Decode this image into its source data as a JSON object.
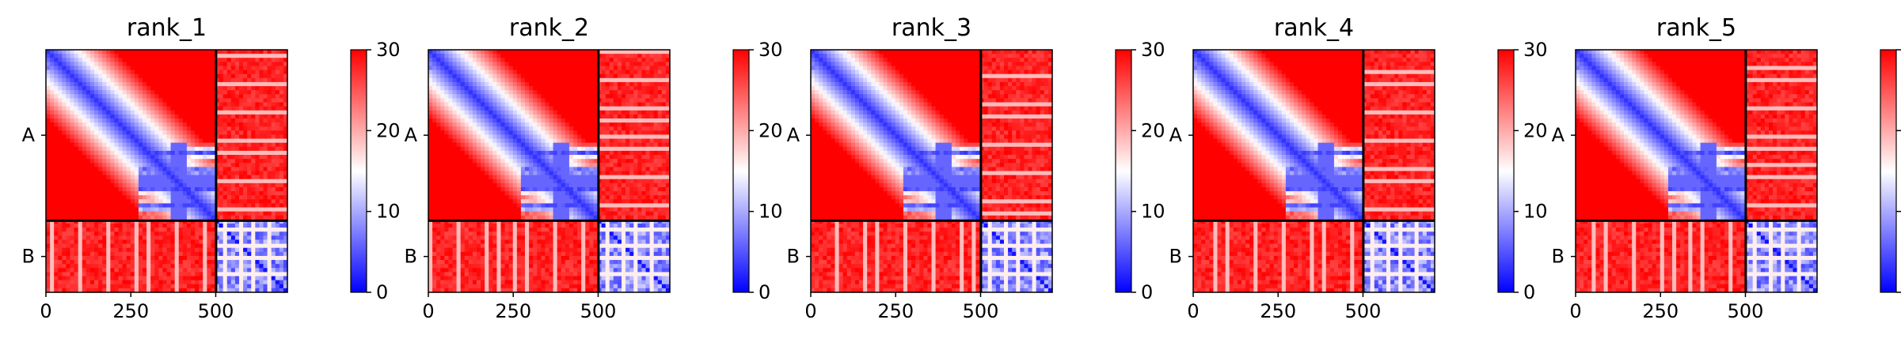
{
  "figure": {
    "panel_count": 5,
    "colormap": {
      "name": "bwr",
      "low": "#0000ff",
      "mid": "#ffffff",
      "high": "#ff0000"
    },
    "boundary_color": "#000000"
  },
  "chart_data": [
    {
      "type": "heatmap",
      "title": "rank_1",
      "x_ticks": [
        "0",
        "250",
        "500"
      ],
      "x_tick_values": [
        0,
        250,
        500
      ],
      "xlim": [
        0,
        711
      ],
      "y_tick_labels": [
        "A",
        "B"
      ],
      "ylim": [
        711,
        0
      ],
      "chains": [
        {
          "name": "A",
          "start": 0,
          "end": 501
        },
        {
          "name": "B",
          "start": 501,
          "end": 711
        }
      ],
      "colorbar": {
        "min": 0,
        "max": 30,
        "ticks": [
          "0",
          "10",
          "20",
          "30"
        ],
        "tick_values": [
          0,
          10,
          20,
          30
        ]
      }
    },
    {
      "type": "heatmap",
      "title": "rank_2",
      "x_ticks": [
        "0",
        "250",
        "500"
      ],
      "x_tick_values": [
        0,
        250,
        500
      ],
      "xlim": [
        0,
        711
      ],
      "y_tick_labels": [
        "A",
        "B"
      ],
      "ylim": [
        711,
        0
      ],
      "chains": [
        {
          "name": "A",
          "start": 0,
          "end": 501
        },
        {
          "name": "B",
          "start": 501,
          "end": 711
        }
      ],
      "colorbar": {
        "min": 0,
        "max": 30,
        "ticks": [
          "0",
          "10",
          "20",
          "30"
        ],
        "tick_values": [
          0,
          10,
          20,
          30
        ]
      }
    },
    {
      "type": "heatmap",
      "title": "rank_3",
      "x_ticks": [
        "0",
        "250",
        "500"
      ],
      "x_tick_values": [
        0,
        250,
        500
      ],
      "xlim": [
        0,
        711
      ],
      "y_tick_labels": [
        "A",
        "B"
      ],
      "ylim": [
        711,
        0
      ],
      "chains": [
        {
          "name": "A",
          "start": 0,
          "end": 501
        },
        {
          "name": "B",
          "start": 501,
          "end": 711
        }
      ],
      "colorbar": {
        "min": 0,
        "max": 30,
        "ticks": [
          "0",
          "10",
          "20",
          "30"
        ],
        "tick_values": [
          0,
          10,
          20,
          30
        ]
      }
    },
    {
      "type": "heatmap",
      "title": "rank_4",
      "x_ticks": [
        "0",
        "250",
        "500"
      ],
      "x_tick_values": [
        0,
        250,
        500
      ],
      "xlim": [
        0,
        711
      ],
      "y_tick_labels": [
        "A",
        "B"
      ],
      "ylim": [
        711,
        0
      ],
      "chains": [
        {
          "name": "A",
          "start": 0,
          "end": 501
        },
        {
          "name": "B",
          "start": 501,
          "end": 711
        }
      ],
      "colorbar": {
        "min": 0,
        "max": 30,
        "ticks": [
          "0",
          "10",
          "20",
          "30"
        ],
        "tick_values": [
          0,
          10,
          20,
          30
        ]
      }
    },
    {
      "type": "heatmap",
      "title": "rank_5",
      "x_ticks": [
        "0",
        "250",
        "500"
      ],
      "x_tick_values": [
        0,
        250,
        500
      ],
      "xlim": [
        0,
        711
      ],
      "y_tick_labels": [
        "A",
        "B"
      ],
      "ylim": [
        711,
        0
      ],
      "chains": [
        {
          "name": "A",
          "start": 0,
          "end": 501
        },
        {
          "name": "B",
          "start": 501,
          "end": 711
        }
      ],
      "colorbar": {
        "min": 0,
        "max": 30,
        "ticks": [
          "0",
          "10",
          "20",
          "30"
        ],
        "tick_values": [
          0,
          10,
          20,
          30
        ]
      }
    }
  ]
}
